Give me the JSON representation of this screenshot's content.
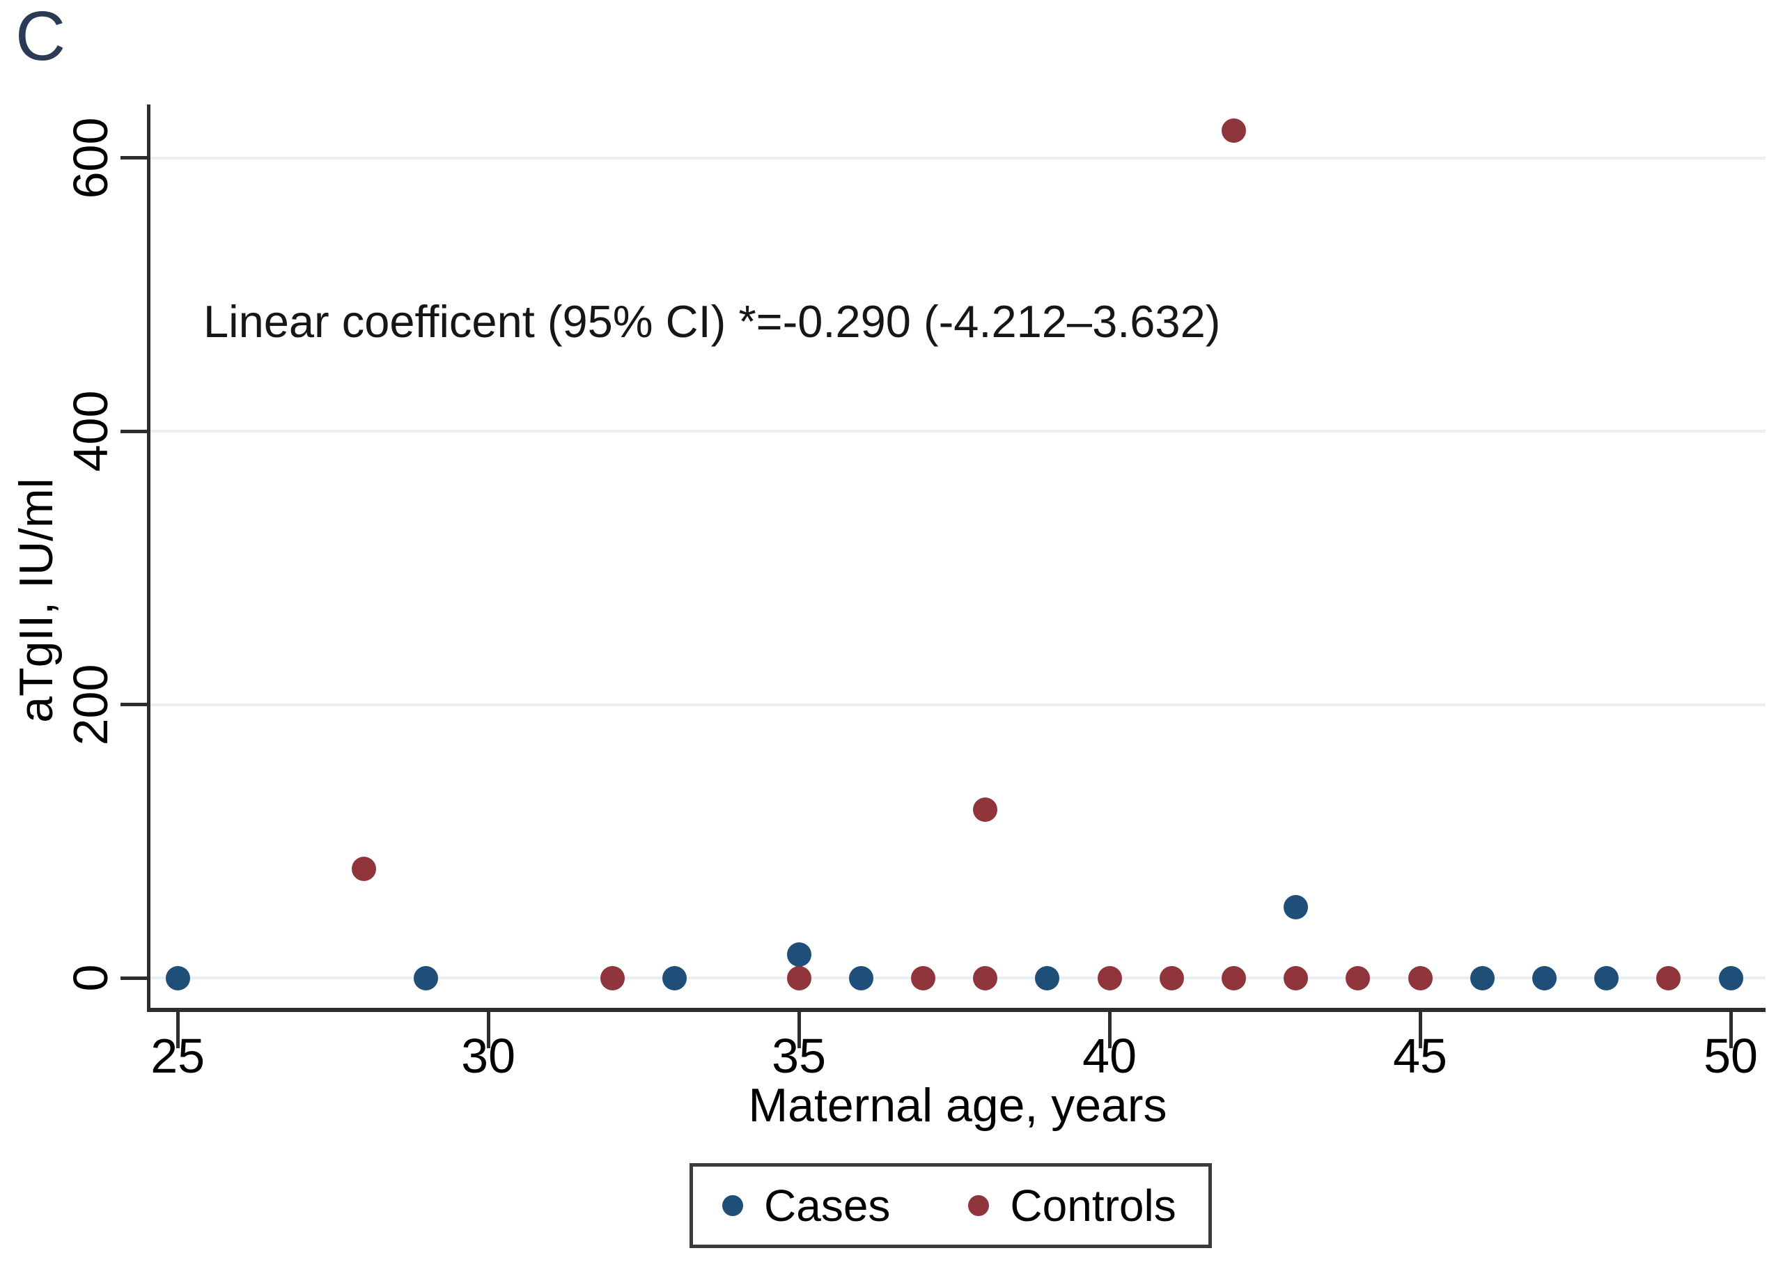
{
  "panel_label": "C",
  "chart_data": {
    "type": "scatter",
    "annotation": "Linear coefficent (95% CI) *=-0.290 (-4.212–3.632)",
    "xlabel": "Maternal age, years",
    "ylabel": "aTgII, IU/ml",
    "x_ticks": [
      25,
      30,
      35,
      40,
      45,
      50
    ],
    "y_ticks": [
      0,
      200,
      400,
      600
    ],
    "xlim": [
      24.55,
      50.56
    ],
    "ylim": [
      -23.4,
      639.2
    ],
    "grid": "horizontal-only",
    "legend_position": "bottom-center",
    "series": [
      {
        "name": "Cases",
        "color": "#1f4e79",
        "points": [
          [
            25,
            0
          ],
          [
            29,
            0
          ],
          [
            33,
            0
          ],
          [
            35,
            17
          ],
          [
            36,
            0
          ],
          [
            39,
            0
          ],
          [
            43,
            52
          ],
          [
            46,
            0
          ],
          [
            47,
            0
          ],
          [
            48,
            0
          ],
          [
            50,
            0
          ]
        ]
      },
      {
        "name": "Controls",
        "color": "#90353b",
        "points": [
          [
            28,
            80
          ],
          [
            32,
            0
          ],
          [
            35,
            0
          ],
          [
            37,
            0
          ],
          [
            38,
            0
          ],
          [
            38,
            123
          ],
          [
            40,
            0
          ],
          [
            41,
            0
          ],
          [
            42,
            0
          ],
          [
            42,
            620
          ],
          [
            43,
            0
          ],
          [
            44,
            0
          ],
          [
            45,
            0
          ],
          [
            49,
            0
          ]
        ]
      }
    ]
  },
  "colors": {
    "axis": "#2d2d2d",
    "gridline": "#e9eff4",
    "panel_label": "#2b3a55",
    "legend_border": "#3b3b3b"
  }
}
